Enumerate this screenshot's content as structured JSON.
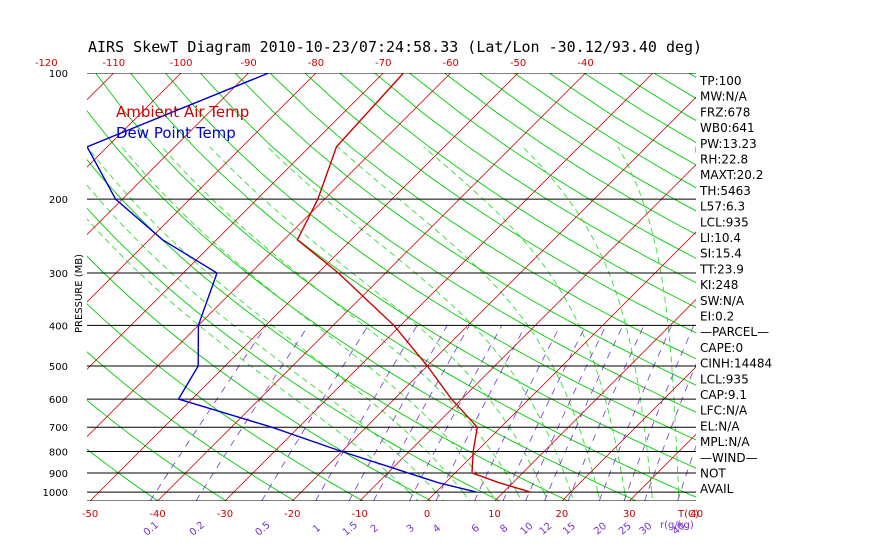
{
  "chart_data": {
    "type": "line",
    "title": "AIRS SkewT Diagram 2010-10-23/07:24:58.33 (Lat/Lon -30.12/93.40 deg)",
    "ylabel": "PRESSURE (MB)",
    "xlabel": "T(C)",
    "mixing_ratio_unit": "r(g/kg)",
    "pressure_ticks": [
      100,
      200,
      300,
      400,
      500,
      600,
      700,
      800,
      900,
      1000
    ],
    "bottom_temp_ticks": [
      -50,
      -40,
      -30,
      -20,
      -10,
      0,
      10,
      20,
      30,
      40
    ],
    "top_temp_ticks": [
      -120,
      -110,
      -100,
      -90,
      -80,
      -70,
      -60,
      -50,
      -40
    ],
    "mixing_ratio_ticks": [
      "0.1",
      "0.2",
      "0.5",
      "1",
      "1.5",
      "2",
      "3",
      "4",
      "6",
      "8",
      "10",
      "12",
      "15",
      "20",
      "25",
      "30",
      "40"
    ],
    "ylim": [
      1050,
      100
    ],
    "series": [
      {
        "name": "Ambient Air Temp",
        "color": "#cc0000",
        "points": [
          {
            "p": 100,
            "t": -67.0
          },
          {
            "p": 150,
            "t": -66.0
          },
          {
            "p": 200,
            "t": -61.0
          },
          {
            "p": 250,
            "t": -58.0
          },
          {
            "p": 300,
            "t": -47.0
          },
          {
            "p": 400,
            "t": -31.0
          },
          {
            "p": 500,
            "t": -20.0
          },
          {
            "p": 600,
            "t": -11.5
          },
          {
            "p": 700,
            "t": -3.5
          },
          {
            "p": 800,
            "t": -0.5
          },
          {
            "p": 900,
            "t": 2.5
          },
          {
            "p": 950,
            "t": 8.0
          },
          {
            "p": 1000,
            "t": 14.0
          }
        ]
      },
      {
        "name": "Dew Point Temp",
        "color": "#0000cc",
        "points": [
          {
            "p": 100,
            "t": -87.0
          },
          {
            "p": 150,
            "t": -103.0
          },
          {
            "p": 200,
            "t": -91.0
          },
          {
            "p": 250,
            "t": -78.0
          },
          {
            "p": 300,
            "t": -65.0
          },
          {
            "p": 400,
            "t": -60.0
          },
          {
            "p": 500,
            "t": -54.0
          },
          {
            "p": 600,
            "t": -52.0
          },
          {
            "p": 700,
            "t": -34.0
          },
          {
            "p": 800,
            "t": -20.0
          },
          {
            "p": 900,
            "t": -7.0
          },
          {
            "p": 950,
            "t": -1.0
          },
          {
            "p": 1000,
            "t": 6.0
          }
        ]
      }
    ]
  },
  "colors": {
    "temperature": "#cc0000",
    "dewpoint": "#0000cc",
    "dry_adiabat": "#00cc00",
    "moist_adiabat": "#33dd33",
    "mixing_ratio": "#7733cc",
    "isotherm": "#cc0000",
    "isobar": "#000000"
  },
  "stats": [
    "TP:100",
    "MW:N/A",
    "FRZ:678",
    "WB0:641",
    "PW:13.23",
    "RH:22.8",
    "MAXT:20.2",
    "TH:5463",
    "L57:6.3",
    "LCL:935",
    "LI:10.4",
    "SI:15.4",
    "TT:23.9",
    "KI:248",
    "SW:N/A",
    "EI:0.2",
    "—PARCEL—",
    "CAPE:0",
    "CINH:14484",
    "LCL:935",
    "CAP:9.1",
    "LFC:N/A",
    "EL:N/A",
    "MPL:N/A",
    "—WIND—",
    "NOT",
    "AVAIL"
  ]
}
